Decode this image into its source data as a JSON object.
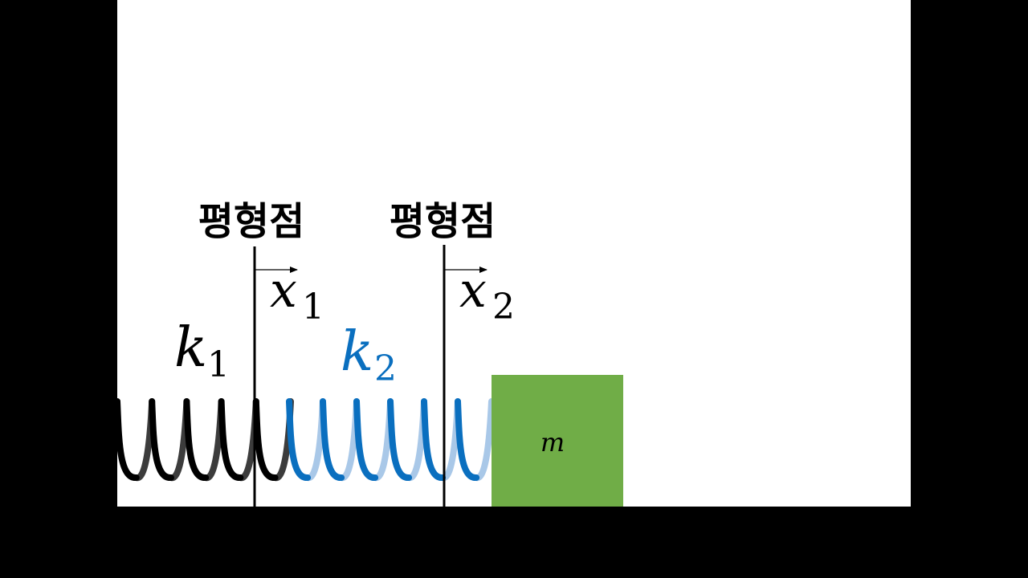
{
  "labels": {
    "equilibrium_1": "평형점",
    "equilibrium_2": "평형점",
    "spring_1": {
      "symbol": "k",
      "subscript": "1"
    },
    "spring_2": {
      "symbol": "k",
      "subscript": "2"
    },
    "displacement_1": {
      "symbol": "x",
      "subscript": "1"
    },
    "displacement_2": {
      "symbol": "x",
      "subscript": "2"
    },
    "mass": "m"
  },
  "colors": {
    "background": "#000000",
    "canvas": "#ffffff",
    "spring_1_front": "#000000",
    "spring_1_back": "#3c3c3c",
    "spring_2_front": "#0a6fbf",
    "spring_2_back": "#a9c8e8",
    "spring_2_label": "#0a6fbf",
    "mass_block": "#70ad47",
    "text": "#000000"
  }
}
